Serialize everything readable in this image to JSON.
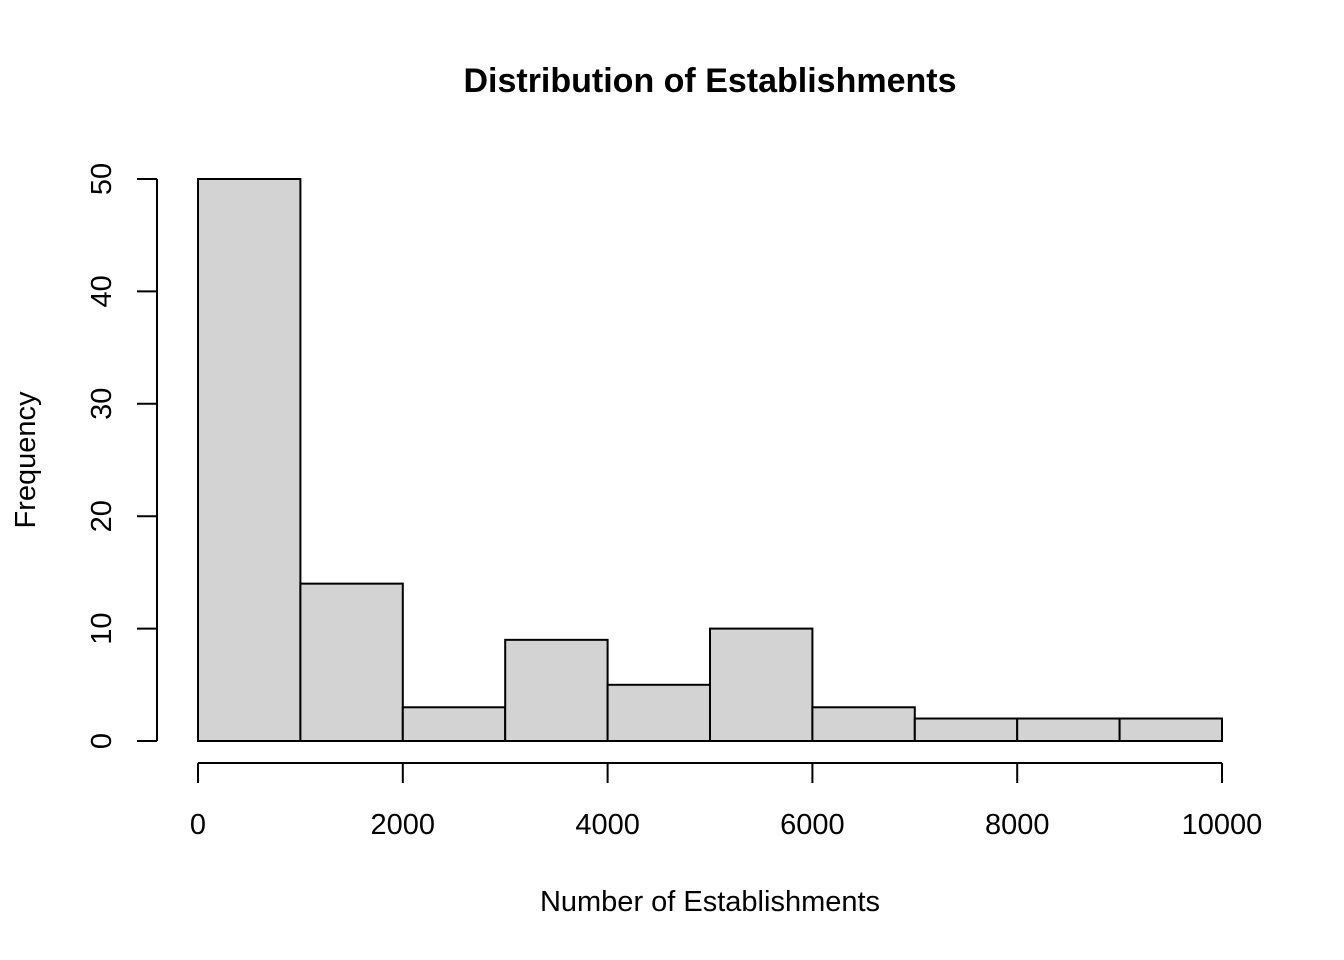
{
  "chart_data": {
    "type": "bar",
    "subtype": "histogram",
    "title": "Distribution of Establishments",
    "xlabel": "Number of Establishments",
    "ylabel": "Frequency",
    "bin_edges": [
      0,
      1000,
      2000,
      3000,
      4000,
      5000,
      6000,
      7000,
      8000,
      9000,
      10000
    ],
    "values": [
      50,
      14,
      3,
      9,
      5,
      10,
      3,
      2,
      2,
      2
    ],
    "xlim": [
      0,
      10000
    ],
    "ylim": [
      0,
      50
    ],
    "x_ticks": [
      0,
      2000,
      4000,
      6000,
      8000,
      10000
    ],
    "x_tick_labels": [
      "0",
      "2000",
      "4000",
      "6000",
      "8000",
      "10000"
    ],
    "y_ticks": [
      0,
      10,
      20,
      30,
      40,
      50
    ],
    "y_tick_labels": [
      "0",
      "10",
      "20",
      "30",
      "40",
      "50"
    ],
    "bar_color": "#d3d3d3",
    "bar_border_color": "#000000",
    "grid": false,
    "legend": "none"
  }
}
